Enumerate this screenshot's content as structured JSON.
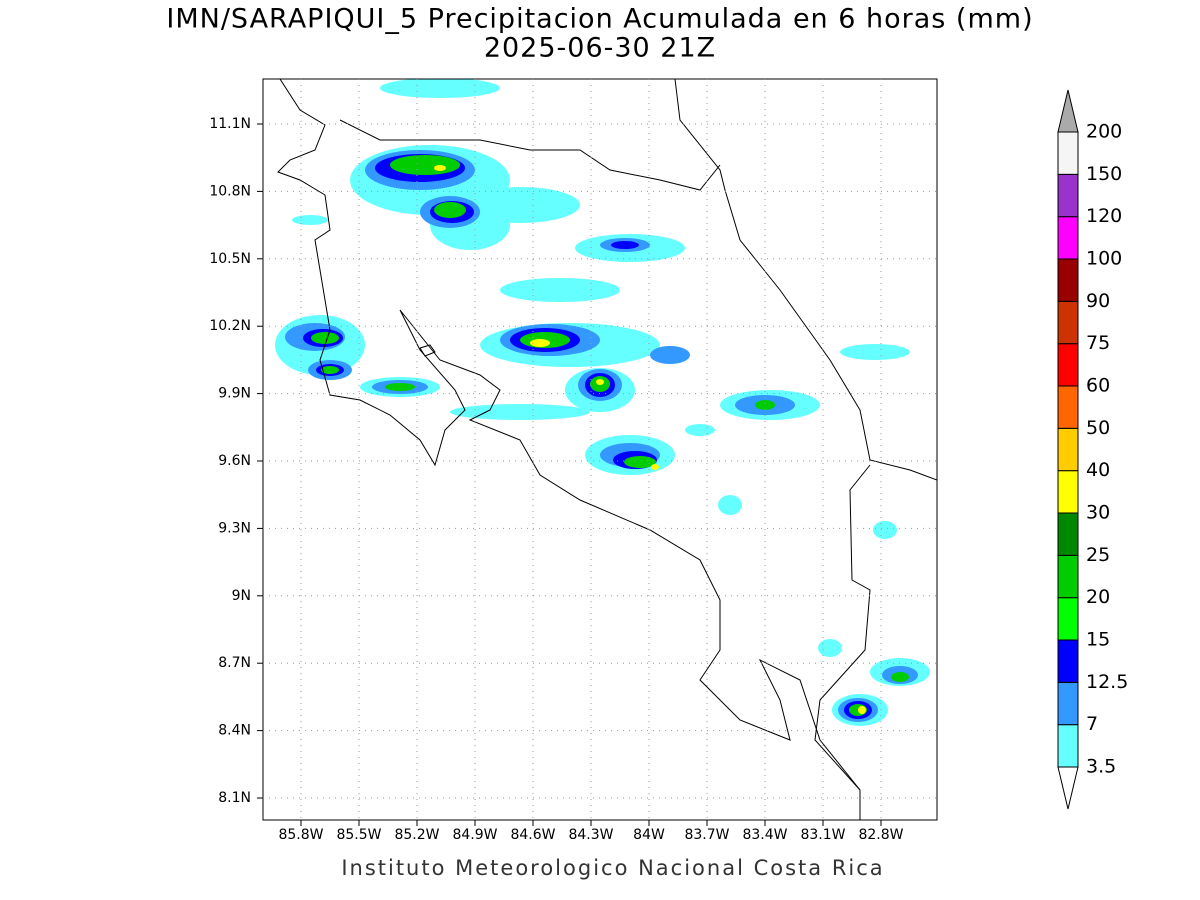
{
  "header": {
    "title": "IMN/SARAPIQUI_5 Precipitacion Acumulada en 6 horas (mm)",
    "subtitle": "2025-06-30 21Z"
  },
  "map": {
    "lon_labels": [
      "85.8W",
      "85.5W",
      "85.2W",
      "84.9W",
      "84.6W",
      "84.3W",
      "84W",
      "83.7W",
      "83.4W",
      "83.1W",
      "82.8W"
    ],
    "lat_labels": [
      "11.1N",
      "10.8N",
      "10.5N",
      "10.2N",
      "9.9N",
      "9.6N",
      "9.3N",
      "9N",
      "8.7N",
      "8.4N",
      "8.1N"
    ]
  },
  "colorbar": {
    "levels": [
      3.5,
      7,
      12.5,
      15,
      20,
      25,
      30,
      40,
      50,
      60,
      75,
      90,
      100,
      120,
      150,
      200
    ],
    "colors": [
      "#66ffff",
      "#3399ff",
      "#0000ff",
      "#00ff00",
      "#00cc00",
      "#008800",
      "#ffff00",
      "#ffcc00",
      "#ff6600",
      "#ff0000",
      "#cc3300",
      "#990000",
      "#ff00ff",
      "#9933cc",
      "#f5f5f5"
    ],
    "under_color": "#ffffff",
    "over_color": "#aaaaaa"
  },
  "footer": "Instituto Meteorologico Nacional Costa Rica"
}
